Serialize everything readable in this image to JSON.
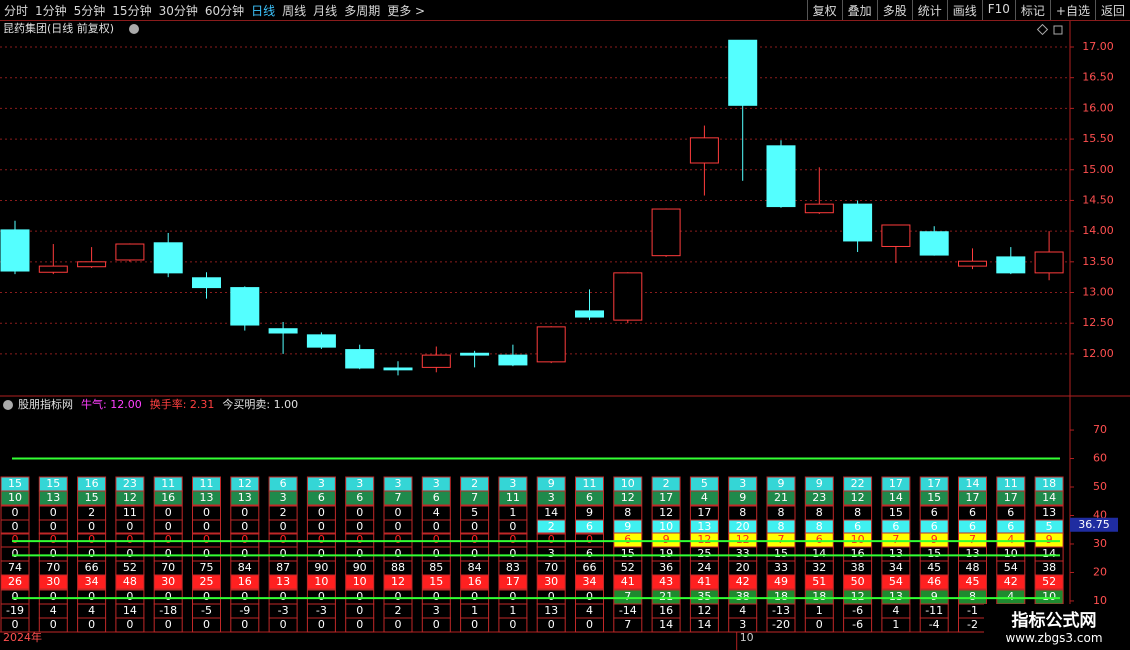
{
  "toolbar": {
    "left": [
      "分时",
      "1分钟",
      "5分钟",
      "15分钟",
      "30分钟",
      "60分钟",
      "日线",
      "周线",
      "月线",
      "多周期",
      "更多 >"
    ],
    "active": 6,
    "right": [
      "复权",
      "叠加",
      "多股",
      "统计",
      "画线",
      "F10",
      "标记",
      "+自选",
      "返回"
    ]
  },
  "chart_data": [
    {
      "type": "candlestick",
      "title": "昆药集团(日线 前复权)",
      "x_labels": [
        "2024年",
        "10"
      ],
      "up_color": "#ff3c3c",
      "down_color": "#54ffff",
      "open": [
        14.02,
        13.33,
        13.42,
        13.53,
        13.81,
        13.24,
        13.08,
        12.41,
        12.31,
        12.07,
        11.77,
        11.78,
        12.01,
        11.98,
        11.87,
        12.7,
        12.55,
        13.6,
        15.11,
        17.11,
        15.39,
        14.3,
        14.44,
        13.75,
        13.99,
        13.43,
        13.58,
        13.32
      ],
      "high": [
        14.17,
        13.79,
        13.74,
        13.8,
        13.97,
        13.33,
        13.1,
        12.52,
        12.35,
        12.15,
        11.88,
        12.12,
        12.05,
        12.15,
        12.45,
        13.05,
        13.33,
        14.37,
        15.72,
        17.11,
        15.48,
        15.04,
        14.5,
        14.1,
        14.08,
        13.72,
        13.74,
        14.0
      ],
      "low": [
        13.3,
        13.3,
        13.4,
        13.5,
        13.25,
        12.9,
        12.38,
        12.0,
        12.08,
        11.75,
        11.65,
        11.7,
        11.78,
        11.8,
        11.85,
        12.55,
        12.5,
        13.58,
        14.58,
        14.82,
        14.38,
        14.28,
        13.66,
        13.48,
        13.6,
        13.38,
        13.3,
        13.2
      ],
      "close": [
        13.35,
        13.43,
        13.5,
        13.79,
        13.32,
        13.08,
        12.47,
        12.34,
        12.11,
        11.77,
        11.74,
        11.98,
        11.98,
        11.82,
        12.44,
        12.6,
        13.32,
        14.36,
        15.52,
        16.05,
        14.4,
        14.44,
        13.84,
        14.1,
        13.61,
        13.51,
        13.32,
        13.66
      ],
      "ylim": [
        11.33,
        17.44
      ],
      "yticks": [
        {
          "value": 12,
          "label": "12.00"
        },
        {
          "value": 12.5,
          "label": "12.50"
        },
        {
          "value": 13,
          "label": "13.00"
        },
        {
          "value": 13.5,
          "label": "13.50"
        },
        {
          "value": 14,
          "label": "14.00"
        },
        {
          "value": 14.5,
          "label": "14.50"
        },
        {
          "value": 15,
          "label": "15.00"
        },
        {
          "value": 15.5,
          "label": "15.50"
        },
        {
          "value": 16,
          "label": "16.00"
        },
        {
          "value": 16.5,
          "label": "16.50"
        },
        {
          "value": 17,
          "label": "17.00"
        }
      ],
      "grid": true
    },
    {
      "type": "indicator-table",
      "legend": [
        {
          "text": "股朋指标网",
          "color": "#e0e0e0"
        },
        {
          "text": "牛气: 12.00",
          "color": "#ff40ff"
        },
        {
          "text": "换手率: 2.31",
          "color": "#ff4040"
        },
        {
          "text": "今买明卖: 1.00",
          "color": "#e0e0e0"
        }
      ],
      "ylim": [
        -0.9,
        81.6
      ],
      "yticks": [
        10,
        20,
        30,
        40,
        50,
        60,
        70
      ],
      "levels": [
        60,
        31,
        26,
        11
      ],
      "level_color": "#33ff33",
      "current": {
        "value": 36.75,
        "label": "36.75"
      },
      "rows": [
        {
          "fill": "#34d6d6",
          "text_color": "#ffffff",
          "values": [
            15,
            15,
            16,
            23,
            11,
            11,
            12,
            6,
            3,
            3,
            3,
            3,
            2,
            3,
            9,
            11,
            10,
            2,
            5,
            3,
            9,
            9,
            22,
            17,
            17,
            14,
            11,
            18
          ]
        },
        {
          "fill": "#1f8a4c",
          "text_color": "#ffffff",
          "values": [
            10,
            13,
            15,
            12,
            16,
            13,
            13,
            3,
            6,
            6,
            7,
            6,
            7,
            11,
            3,
            6,
            12,
            17,
            4,
            9,
            21,
            23,
            12,
            14,
            15,
            17,
            17,
            14
          ]
        },
        {
          "fill": null,
          "text_color": "#ffffff",
          "values": [
            0,
            0,
            2,
            11,
            0,
            0,
            0,
            2,
            0,
            0,
            0,
            4,
            5,
            1,
            14,
            9,
            8,
            12,
            17,
            8,
            8,
            8,
            8,
            15,
            6,
            6,
            6,
            13
          ]
        },
        {
          "fill": "#40f0f0",
          "text_color": "#ffffff",
          "values": [
            0,
            0,
            0,
            0,
            0,
            0,
            0,
            0,
            0,
            0,
            0,
            0,
            0,
            0,
            2,
            6,
            9,
            10,
            13,
            20,
            8,
            8,
            6,
            6,
            6,
            6,
            6,
            5
          ]
        },
        {
          "fill": "#ffff00",
          "text_color": "#ff2020",
          "values": [
            0,
            0,
            0,
            0,
            0,
            0,
            0,
            0,
            0,
            0,
            0,
            0,
            0,
            0,
            0,
            0,
            6,
            9,
            12,
            12,
            7,
            6,
            10,
            7,
            9,
            7,
            4,
            9
          ]
        },
        {
          "fill": null,
          "text_color": "#ffffff",
          "values": [
            0,
            0,
            0,
            0,
            0,
            0,
            0,
            0,
            0,
            0,
            0,
            0,
            0,
            0,
            3,
            6,
            15,
            19,
            25,
            33,
            15,
            14,
            16,
            13,
            15,
            13,
            10,
            14
          ]
        },
        {
          "fill": null,
          "text_color": "#ffffff",
          "values": [
            74,
            70,
            66,
            52,
            70,
            75,
            84,
            87,
            90,
            90,
            88,
            85,
            84,
            83,
            70,
            66,
            52,
            36,
            24,
            20,
            33,
            32,
            38,
            34,
            45,
            48,
            54,
            38
          ]
        },
        {
          "fill": "#ff2020",
          "text_color": "#ffffff",
          "values": [
            26,
            30,
            34,
            48,
            30,
            25,
            16,
            13,
            10,
            10,
            12,
            15,
            16,
            17,
            30,
            34,
            41,
            43,
            41,
            42,
            49,
            51,
            50,
            54,
            46,
            45,
            42,
            52
          ]
        },
        {
          "fill": "#1f8a30",
          "text_color": "#ffffff",
          "values": [
            0,
            0,
            0,
            0,
            0,
            0,
            0,
            0,
            0,
            0,
            0,
            0,
            0,
            0,
            0,
            0,
            7,
            21,
            35,
            38,
            18,
            18,
            12,
            13,
            9,
            8,
            4,
            10
          ]
        },
        {
          "fill": null,
          "text_color": "#ffffff",
          "values": [
            -19,
            4,
            4,
            14,
            -18,
            -5,
            -9,
            -3,
            -3,
            0,
            2,
            3,
            1,
            1,
            13,
            4,
            -14,
            16,
            12,
            4,
            -13,
            1,
            -6,
            4,
            -11,
            -1,
            -4,
            -1
          ]
        },
        {
          "fill": null,
          "text_color": "#ffffff",
          "values": [
            0,
            0,
            0,
            0,
            0,
            0,
            0,
            0,
            0,
            0,
            0,
            0,
            0,
            0,
            0,
            0,
            7,
            14,
            14,
            3,
            -20,
            0,
            -6,
            1,
            -4,
            -2,
            0,
            0
          ]
        }
      ]
    }
  ],
  "watermark": {
    "title": "指标公式网",
    "url": "www.zbgs3.com"
  }
}
